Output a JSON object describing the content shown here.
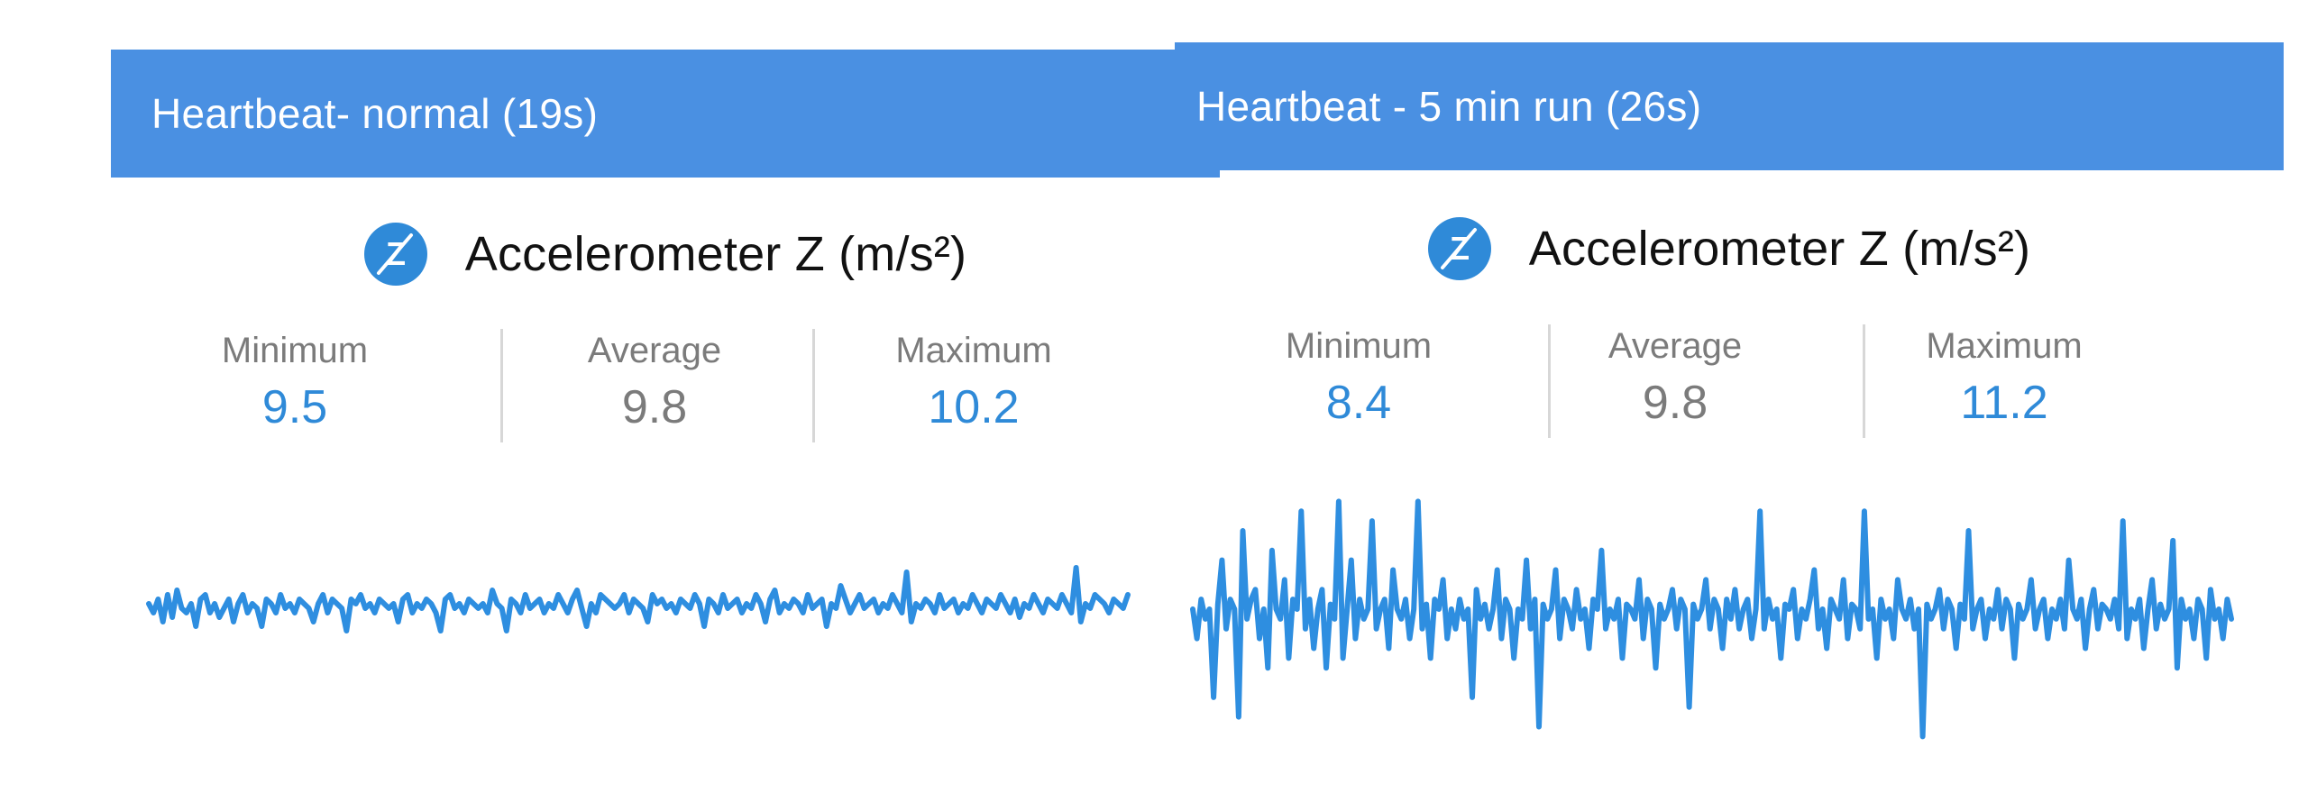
{
  "panels": [
    {
      "header": "Heartbeat- normal (19s)",
      "sensor_title": "Accelerometer Z (m/s²)",
      "icon": "accelerometer-z-icon",
      "icon_letter": "Z",
      "stats": {
        "minimum_label": "Minimum",
        "minimum_value": "9.5",
        "average_label": "Average",
        "average_value": "9.8",
        "maximum_label": "Maximum",
        "maximum_value": "10.2"
      }
    },
    {
      "header": "Heartbeat - 5 min run (26s)",
      "sensor_title": "Accelerometer Z (m/s²)",
      "icon": "accelerometer-z-icon",
      "icon_letter": "Z",
      "stats": {
        "minimum_label": "Minimum",
        "minimum_value": "8.4",
        "average_label": "Average",
        "average_value": "9.8",
        "maximum_label": "Maximum",
        "maximum_value": "11.2"
      }
    }
  ],
  "colors": {
    "header_bg": "#4a90e2",
    "accent": "#2f8ad8",
    "line": "#2e8ee0",
    "muted": "#7b7b7b"
  },
  "chart_data": [
    {
      "type": "line",
      "title": "",
      "xlabel": "",
      "ylabel": "",
      "ylim": [
        8.2,
        11.4
      ],
      "x_duration_s": 19,
      "series": [
        {
          "values": [
            9.8,
            9.7,
            9.85,
            9.6,
            9.9,
            9.65,
            9.95,
            9.75,
            9.7,
            9.8,
            9.55,
            9.85,
            9.9,
            9.7,
            9.8,
            9.65,
            9.75,
            9.85,
            9.6,
            9.8,
            9.9,
            9.7,
            9.8,
            9.75,
            9.55,
            9.85,
            9.8,
            9.7,
            9.9,
            9.75,
            9.8,
            9.7,
            9.85,
            9.8,
            9.75,
            9.6,
            9.8,
            9.9,
            9.7,
            9.85,
            9.8,
            9.75,
            9.5,
            9.85,
            9.8,
            9.9,
            9.75,
            9.8,
            9.7,
            9.85,
            9.8,
            9.75,
            9.8,
            9.6,
            9.85,
            9.9,
            9.7,
            9.8,
            9.75,
            9.85,
            9.8,
            9.7,
            9.5,
            9.85,
            9.9,
            9.75,
            9.8,
            9.7,
            9.85,
            9.8,
            9.75,
            9.8,
            9.7,
            9.95,
            9.8,
            9.75,
            9.5,
            9.85,
            9.8,
            9.7,
            9.9,
            9.75,
            9.8,
            9.85,
            9.7,
            9.8,
            9.75,
            9.9,
            9.8,
            9.7,
            9.85,
            9.95,
            9.75,
            9.55,
            9.8,
            9.7,
            9.9,
            9.85,
            9.8,
            9.75,
            9.8,
            9.9,
            9.7,
            9.85,
            9.8,
            9.75,
            9.6,
            9.9,
            9.8,
            9.85,
            9.75,
            9.8,
            9.7,
            9.85,
            9.8,
            9.75,
            9.9,
            9.8,
            9.55,
            9.85,
            9.8,
            9.7,
            9.9,
            9.75,
            9.8,
            9.85,
            9.7,
            9.8,
            9.75,
            9.9,
            9.8,
            9.6,
            9.85,
            9.95,
            9.7,
            9.8,
            9.75,
            9.85,
            9.8,
            9.7,
            9.9,
            9.75,
            9.8,
            9.85,
            9.55,
            9.8,
            9.75,
            10.0,
            9.85,
            9.7,
            9.8,
            9.9,
            9.75,
            9.8,
            9.85,
            9.7,
            9.8,
            9.75,
            9.9,
            9.8,
            9.7,
            10.15,
            9.6,
            9.8,
            9.75,
            9.85,
            9.8,
            9.7,
            9.9,
            9.75,
            9.8,
            9.85,
            9.7,
            9.8,
            9.75,
            9.9,
            9.8,
            9.7,
            9.85,
            9.8,
            9.75,
            9.9,
            9.8,
            9.7,
            9.85,
            9.65,
            9.8,
            9.75,
            9.9,
            9.8,
            9.7,
            9.85,
            9.8,
            9.75,
            9.9,
            9.8,
            9.7,
            10.2,
            9.6,
            9.8,
            9.75,
            9.9,
            9.85,
            9.8,
            9.7,
            9.85,
            9.8,
            9.75,
            9.9
          ]
        }
      ]
    },
    {
      "type": "line",
      "title": "",
      "xlabel": "",
      "ylabel": "",
      "ylim": [
        8.2,
        11.4
      ],
      "x_duration_s": 26,
      "series": [
        {
          "values": [
            9.8,
            9.5,
            9.9,
            9.7,
            9.8,
            8.9,
            9.85,
            10.3,
            9.6,
            9.9,
            9.8,
            8.7,
            10.6,
            9.7,
            9.9,
            10.0,
            9.5,
            9.8,
            9.2,
            10.4,
            9.8,
            9.7,
            10.1,
            9.3,
            9.9,
            9.8,
            10.8,
            9.6,
            9.9,
            9.4,
            9.8,
            10.0,
            9.2,
            9.85,
            9.7,
            10.9,
            9.3,
            9.8,
            10.3,
            9.5,
            9.9,
            9.7,
            9.8,
            10.7,
            9.6,
            9.8,
            9.9,
            9.4,
            10.2,
            9.8,
            9.7,
            9.9,
            9.5,
            9.8,
            10.9,
            9.6,
            9.85,
            9.3,
            9.9,
            9.8,
            10.1,
            9.5,
            9.8,
            9.6,
            9.9,
            9.7,
            9.8,
            8.9,
            10.0,
            9.7,
            9.85,
            9.6,
            9.8,
            10.2,
            9.5,
            9.9,
            9.8,
            9.3,
            9.8,
            9.7,
            10.3,
            9.6,
            9.9,
            8.6,
            9.85,
            9.7,
            9.8,
            10.2,
            9.5,
            9.9,
            9.8,
            9.6,
            10.0,
            9.7,
            9.8,
            9.4,
            9.9,
            9.8,
            10.4,
            9.6,
            9.8,
            9.7,
            9.9,
            9.3,
            9.85,
            9.8,
            9.7,
            10.1,
            9.5,
            9.9,
            9.8,
            9.2,
            9.85,
            9.7,
            9.8,
            10.0,
            9.6,
            9.9,
            9.8,
            8.8,
            9.85,
            9.7,
            9.8,
            10.1,
            9.6,
            9.9,
            9.8,
            9.4,
            9.9,
            9.7,
            10.0,
            9.6,
            9.8,
            9.9,
            9.5,
            9.8,
            10.8,
            9.6,
            9.9,
            9.7,
            9.8,
            9.3,
            9.85,
            9.8,
            10.0,
            9.5,
            9.8,
            9.7,
            9.9,
            10.2,
            9.6,
            9.8,
            9.4,
            9.9,
            9.8,
            9.7,
            10.1,
            9.5,
            9.85,
            9.8,
            9.6,
            10.8,
            9.7,
            9.8,
            9.3,
            9.9,
            9.7,
            9.8,
            9.5,
            10.1,
            9.8,
            9.7,
            9.9,
            9.6,
            9.8,
            8.5,
            9.85,
            9.7,
            9.8,
            10.0,
            9.6,
            9.9,
            9.8,
            9.4,
            9.85,
            9.7,
            10.6,
            9.6,
            9.8,
            9.9,
            9.5,
            9.8,
            9.7,
            10.0,
            9.6,
            9.9,
            9.8,
            9.3,
            9.85,
            9.7,
            9.8,
            10.1,
            9.6,
            9.8,
            9.9,
            9.5,
            9.8,
            9.7,
            9.9,
            9.6,
            10.3,
            9.8,
            9.7,
            9.9,
            9.4,
            9.8,
            10.0,
            9.6,
            9.85,
            9.8,
            9.7,
            9.9,
            9.6,
            10.7,
            9.5,
            9.8,
            9.7,
            9.9,
            9.4,
            9.8,
            10.1,
            9.6,
            9.85,
            9.7,
            9.8,
            10.5,
            9.2,
            9.9,
            9.7,
            9.8,
            9.5,
            9.9,
            9.8,
            9.3,
            10.0,
            9.7,
            9.8,
            9.5,
            9.9,
            9.7
          ]
        }
      ]
    }
  ]
}
